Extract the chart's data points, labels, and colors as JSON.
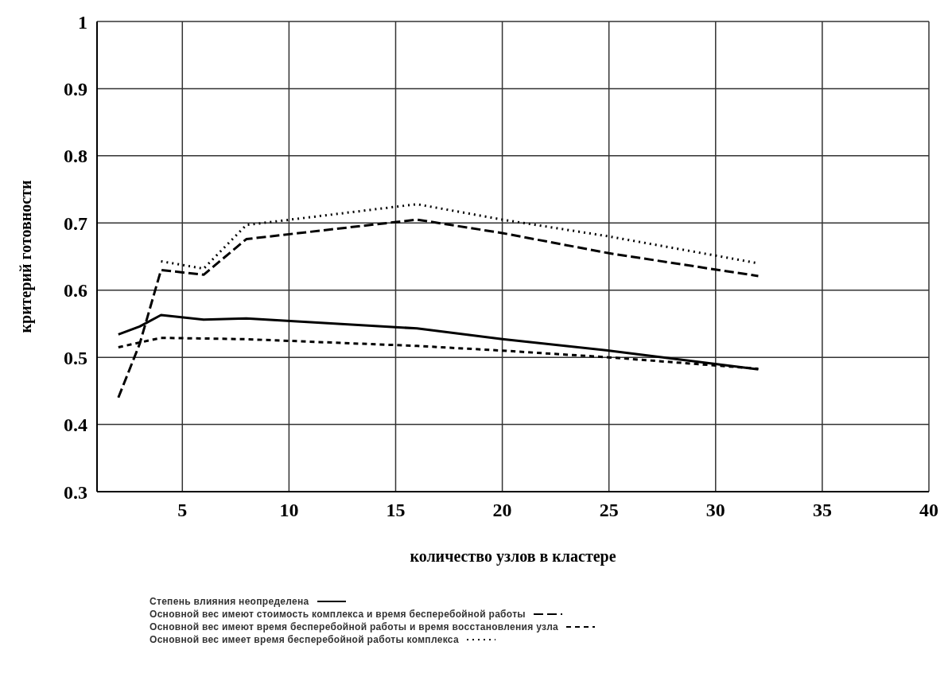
{
  "chart_data": {
    "type": "line",
    "xlabel": "количество узлов в кластере",
    "ylabel": "критерий готовности",
    "xlim": [
      1,
      40
    ],
    "xticks": [
      5,
      10,
      15,
      20,
      25,
      30,
      35,
      40
    ],
    "ylim": [
      0.3,
      1
    ],
    "yticks": [
      0.3,
      0.4,
      0.5,
      0.6,
      0.7,
      0.8,
      0.9,
      1
    ],
    "grid": true,
    "legend": "bottom",
    "marker": "none",
    "series": [
      {
        "name": "Степень влияния неопределена",
        "color": "#000000",
        "line_style": "solid",
        "x": [
          2,
          3,
          4,
          6,
          8,
          16,
          20,
          25,
          32
        ],
        "values": [
          0.534,
          0.546,
          0.563,
          0.556,
          0.558,
          0.543,
          0.527,
          0.51,
          0.482
        ]
      },
      {
        "name": "Основной вес имеют стоимость комплекса и время бесперебойной работы",
        "color": "#000000",
        "line_style": "dashed",
        "x": [
          2,
          3,
          4,
          6,
          8,
          16,
          20,
          25,
          32
        ],
        "values": [
          0.44,
          0.52,
          0.63,
          0.623,
          0.676,
          0.705,
          0.685,
          0.655,
          0.621
        ]
      },
      {
        "name": "Основной вес имеют время бесперебойной работы и время восстановления узла",
        "color": "#000000",
        "line_style": "dashed",
        "x": [
          2,
          3,
          4,
          8,
          16,
          20,
          25,
          32
        ],
        "values": [
          0.515,
          0.522,
          0.529,
          0.527,
          0.517,
          0.51,
          0.5,
          0.483
        ]
      },
      {
        "name": "Основной вес имеет время бесперебойной работы комплекса",
        "color": "#000000",
        "line_style": "dotted",
        "x": [
          4,
          6,
          8,
          16,
          20,
          25,
          32
        ],
        "values": [
          0.643,
          0.632,
          0.697,
          0.728,
          0.705,
          0.68,
          0.64
        ]
      }
    ]
  }
}
